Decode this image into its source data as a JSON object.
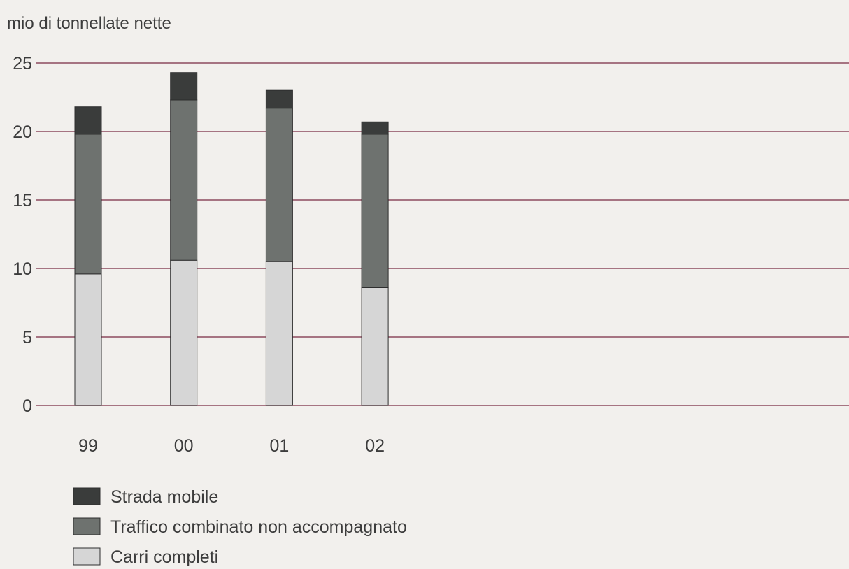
{
  "chart_data": {
    "type": "bar",
    "stacked": true,
    "ylabel": "mio di tonnellate nette",
    "xlabel": "",
    "title": "",
    "categories": [
      "99",
      "00",
      "01",
      "02"
    ],
    "ylim": [
      0,
      25
    ],
    "yticks": [
      0,
      5,
      10,
      15,
      20,
      25
    ],
    "grid": true,
    "legend_position": "bottom-left",
    "series": [
      {
        "name": "Carri completi",
        "values": [
          9.6,
          10.6,
          10.5,
          8.6
        ],
        "color": "#d6d6d6"
      },
      {
        "name": "Traffico combinato non accompagnato",
        "values": [
          10.2,
          11.7,
          11.2,
          11.2
        ],
        "color": "#6e726f"
      },
      {
        "name": "Strada mobile",
        "values": [
          2.0,
          2.0,
          1.3,
          0.9
        ],
        "color": "#3a3c3b"
      }
    ],
    "legend_order": [
      "Strada mobile",
      "Traffico combinato non accompagnato",
      "Carri completi"
    ],
    "grid_color": "#8c4a5e"
  }
}
